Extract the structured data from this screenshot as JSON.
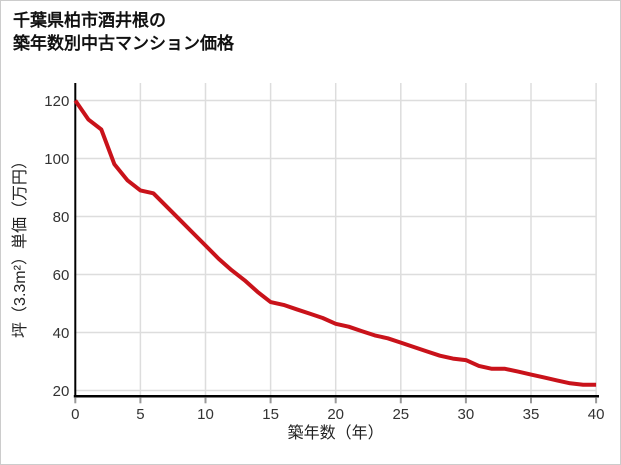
{
  "page": {
    "title_line1": "千葉県柏市酒井根の",
    "title_line2": "築年数別中古マンション価格"
  },
  "chart_data": {
    "type": "line",
    "title": "千葉県柏市酒井根の築年数別中古マンション価格",
    "xlabel": "築年数（年）",
    "ylabel": "坪（3.3m²）単価（万円）",
    "x": [
      0,
      1,
      2,
      3,
      4,
      5,
      6,
      7,
      8,
      9,
      10,
      11,
      12,
      13,
      14,
      15,
      16,
      17,
      18,
      19,
      20,
      21,
      22,
      23,
      24,
      25,
      26,
      27,
      28,
      29,
      30,
      31,
      32,
      33,
      34,
      35,
      36,
      37,
      38,
      39,
      40
    ],
    "values": [
      120,
      113.5,
      110,
      98,
      92.5,
      89,
      88,
      83.5,
      79,
      74.5,
      70,
      65.5,
      61.5,
      58,
      54,
      50.5,
      49.5,
      48,
      46.5,
      45,
      43,
      42,
      40.5,
      39,
      38,
      36.5,
      35,
      33.5,
      32,
      31,
      30.5,
      28.5,
      27.5,
      27.5,
      26.5,
      25.5,
      24.5,
      23.5,
      22.5,
      22,
      22
    ],
    "xticks": [
      0,
      5,
      10,
      15,
      20,
      25,
      30,
      35,
      40
    ],
    "yticks": [
      20,
      40,
      60,
      80,
      100,
      120
    ],
    "xlim": [
      0,
      40
    ],
    "ylim": [
      18,
      126
    ],
    "grid": true,
    "legend": false,
    "line_color": "#C9121A"
  },
  "colors": {
    "line": "#C9121A",
    "grid": "#DDDDDD",
    "axis": "#000000",
    "tick": "#999999",
    "tick_label": "#333333",
    "axis_title": "#222222",
    "title_text": "#111111",
    "page_border": "#CCCCCC",
    "background": "#FFFFFF"
  }
}
